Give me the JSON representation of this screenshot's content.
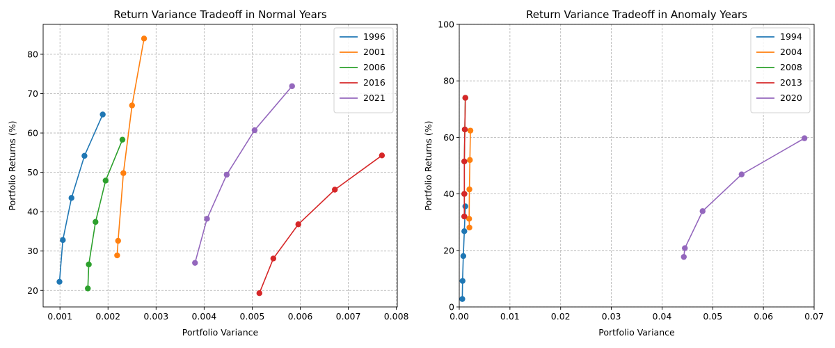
{
  "chart_data": [
    {
      "type": "line",
      "title": "Return Variance Tradeoff in Normal Years",
      "xlabel": "Portfolio Variance",
      "ylabel": "Portfolio Returns (%)",
      "xlim": [
        0.00065,
        0.00802
      ],
      "ylim": [
        15.8,
        87.6
      ],
      "xticks": [
        0.001,
        0.002,
        0.003,
        0.004,
        0.005,
        0.006,
        0.007,
        0.008
      ],
      "xtick_labels": [
        "0.001",
        "0.002",
        "0.003",
        "0.004",
        "0.005",
        "0.006",
        "0.007",
        "0.008"
      ],
      "yticks": [
        20,
        30,
        40,
        50,
        60,
        70,
        80
      ],
      "ytick_labels": [
        "20",
        "30",
        "40",
        "50",
        "60",
        "70",
        "80"
      ],
      "grid": true,
      "legend_position": "top-right",
      "series": [
        {
          "name": "1996",
          "color": "#1f77b4",
          "x": [
            0.00099,
            0.00106,
            0.00124,
            0.00151,
            0.00189
          ],
          "y": [
            22.2,
            32.8,
            43.5,
            54.2,
            64.7
          ]
        },
        {
          "name": "2001",
          "color": "#ff7f0e",
          "x": [
            0.00219,
            0.00221,
            0.00232,
            0.0025,
            0.00275
          ],
          "y": [
            28.9,
            32.6,
            49.8,
            67.0,
            84.0
          ]
        },
        {
          "name": "2006",
          "color": "#2ca02c",
          "x": [
            0.00158,
            0.0016,
            0.00174,
            0.00195,
            0.0023
          ],
          "y": [
            20.5,
            26.6,
            37.4,
            47.9,
            58.3
          ]
        },
        {
          "name": "2016",
          "color": "#d62728",
          "x": [
            0.00515,
            0.00544,
            0.00596,
            0.00672,
            0.0077
          ],
          "y": [
            19.3,
            28.1,
            36.8,
            45.6,
            54.3
          ]
        },
        {
          "name": "2021",
          "color": "#9467bd",
          "x": [
            0.00381,
            0.00406,
            0.00447,
            0.00505,
            0.00583
          ],
          "y": [
            27.0,
            38.2,
            49.4,
            60.7,
            71.9
          ]
        }
      ]
    },
    {
      "type": "line",
      "title": "Return Variance Tradeoff in Anomaly Years",
      "xlabel": "Portfolio Variance",
      "ylabel": "Portfolio Returns (%)",
      "xlim": [
        0,
        0.07
      ],
      "ylim": [
        0,
        100
      ],
      "xticks": [
        0.0,
        0.01,
        0.02,
        0.03,
        0.04,
        0.05,
        0.06,
        0.07
      ],
      "xtick_labels": [
        "0.00",
        "0.01",
        "0.02",
        "0.03",
        "0.04",
        "0.05",
        "0.06",
        "0.07"
      ],
      "yticks": [
        0,
        20,
        40,
        60,
        80,
        100
      ],
      "ytick_labels": [
        "0",
        "20",
        "40",
        "60",
        "80",
        "100"
      ],
      "grid": true,
      "legend_position": "top-right",
      "series": [
        {
          "name": "1994",
          "color": "#1f77b4",
          "x": [
            0.0006,
            0.00065,
            0.0008,
            0.001,
            0.0012
          ],
          "y": [
            2.8,
            9.2,
            18.0,
            26.8,
            35.6
          ]
        },
        {
          "name": "2004",
          "color": "#ff7f0e",
          "x": [
            0.002,
            0.00195,
            0.002,
            0.0021,
            0.0022
          ],
          "y": [
            28.1,
            31.2,
            41.6,
            52.0,
            62.4
          ]
        },
        {
          "name": "2008",
          "color": "#2ca02c",
          "x": [
            0.001,
            0.001,
            0.001,
            0.0011,
            0.0012
          ],
          "y": [
            32.0,
            40.0,
            51.5,
            62.8,
            74.0
          ]
        },
        {
          "name": "2013",
          "color": "#d62728",
          "x": [
            0.001,
            0.001,
            0.001,
            0.0011,
            0.0012
          ],
          "y": [
            32.0,
            40.0,
            51.5,
            62.8,
            74.0
          ]
        },
        {
          "name": "2020",
          "color": "#9467bd",
          "x": [
            0.0443,
            0.0445,
            0.048,
            0.0557,
            0.0681
          ],
          "y": [
            17.7,
            20.8,
            33.9,
            46.9,
            59.7
          ]
        }
      ]
    }
  ]
}
